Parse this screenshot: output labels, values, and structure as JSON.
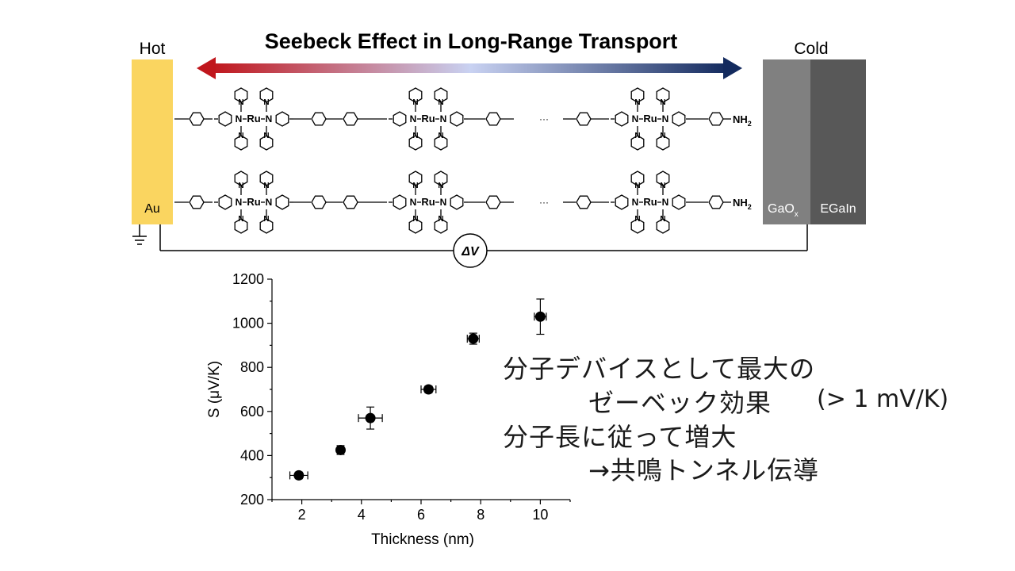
{
  "diagram": {
    "title": "Seebeck Effect in Long-Range Transport",
    "hot_label": "Hot",
    "cold_label": "Cold",
    "au_label": "Au",
    "gaox_label": "GaO",
    "gaox_sub": "x",
    "egain_label": "EGaIn",
    "delta_v_label": "ΔV",
    "metal_label": "Ru",
    "nitrogen_label": "N",
    "amine_label": "NH",
    "amine_sub": "2",
    "ellipsis": "···",
    "colors": {
      "hot_electrode": "#fad560",
      "gaox": "#808080",
      "egain": "#585858",
      "arrow_hot": "#c0161c",
      "arrow_mid": "#c9d2f2",
      "arrow_cold": "#132a5e"
    }
  },
  "chart_data": {
    "type": "scatter",
    "xlabel": "Thickness (nm)",
    "ylabel": "S (μV/K)",
    "xlim": [
      1,
      11
    ],
    "ylim": [
      200,
      1200
    ],
    "xticks": [
      "2",
      "4",
      "6",
      "8",
      "10"
    ],
    "yticks": [
      "200",
      "400",
      "600",
      "800",
      "1000",
      "1200"
    ],
    "series": [
      {
        "points": [
          {
            "x": 1.9,
            "y": 310,
            "xerr": 0.3,
            "yerr": 15
          },
          {
            "x": 3.3,
            "y": 425,
            "xerr": 0.1,
            "yerr": 20
          },
          {
            "x": 4.3,
            "y": 570,
            "xerr": 0.4,
            "yerr": 50
          },
          {
            "x": 6.25,
            "y": 700,
            "xerr": 0.25,
            "yerr": 15
          },
          {
            "x": 7.75,
            "y": 930,
            "xerr": 0.2,
            "yerr": 25
          },
          {
            "x": 10.0,
            "y": 1030,
            "xerr": 0.2,
            "yerr": 80
          }
        ]
      }
    ]
  },
  "notes": {
    "line1": "分子デバイスとして最大の",
    "line2": "ゼーベック効果",
    "line2_value": "(> 1 mV/K)",
    "line3": "分子長に従って増大",
    "line4": "→共鳴トンネル伝導"
  }
}
